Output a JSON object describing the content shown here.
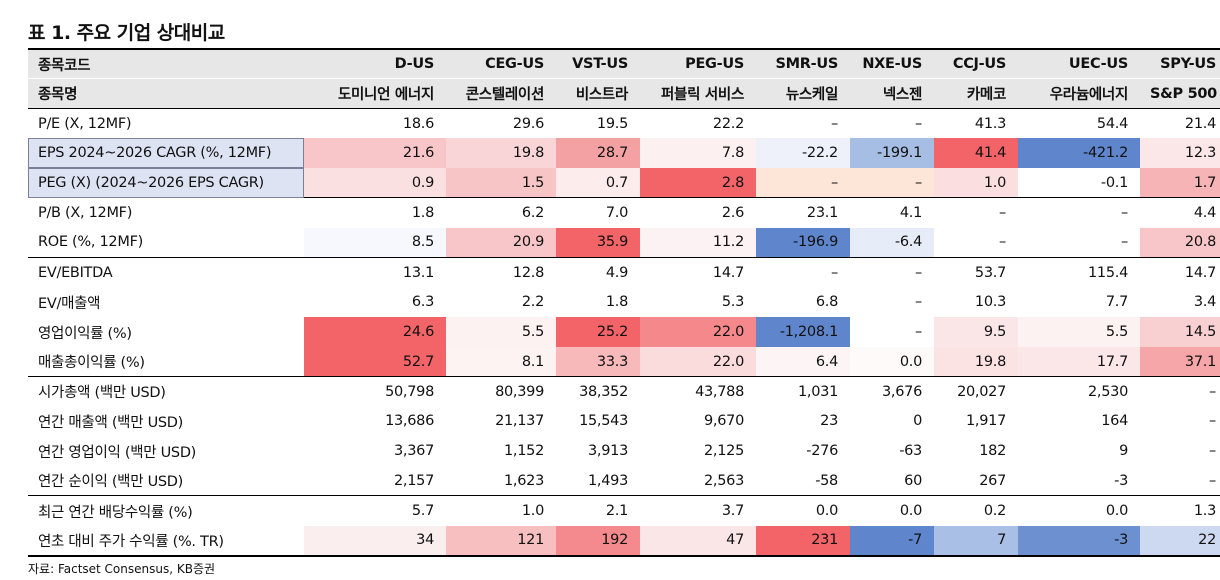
{
  "title": "표 1. 주요 기업 상대비교",
  "source": "자료: Factset Consensus, KB증권",
  "header": {
    "ticker_label": "종목코드",
    "name_label": "종목명",
    "tickers": [
      "D-US",
      "CEG-US",
      "VST-US",
      "PEG-US",
      "SMR-US",
      "NXE-US",
      "CCJ-US",
      "UEC-US",
      "SPY-US"
    ],
    "names": [
      "도미니언 에너지",
      "콘스텔레이션",
      "비스트라",
      "퍼블릭 서비스",
      "뉴스케일",
      "넥스젠",
      "카메코",
      "우라늄에너지",
      "S&P 500"
    ]
  },
  "rows": [
    {
      "label": "P/E (X, 12MF)",
      "group_start": true,
      "values": [
        "18.6",
        "29.6",
        "19.5",
        "22.2",
        "–",
        "–",
        "41.3",
        "54.4",
        "21.4"
      ],
      "colors": [
        "",
        "",
        "",
        "",
        "",
        "",
        "",
        "",
        ""
      ]
    },
    {
      "label": "EPS 2024~2026 CAGR (%, 12MF)",
      "label_highlight": true,
      "values": [
        "21.6",
        "19.8",
        "28.7",
        "7.8",
        "-22.2",
        "-199.1",
        "41.4",
        "-421.2",
        "12.3"
      ],
      "colors": [
        "#f8c6c8",
        "#f9d5d7",
        "#f4a1a4",
        "#fdf0f0",
        "#eef1fa",
        "#a6bde4",
        "#f26468",
        "#5f86cc",
        "#fce7e8"
      ]
    },
    {
      "label": "PEG (X) (2024~2026 EPS CAGR)",
      "label_highlight": true,
      "values": [
        "0.9",
        "1.5",
        "0.7",
        "2.8",
        "–",
        "–",
        "1.0",
        "-0.1",
        "1.7"
      ],
      "colors": [
        "#fbe0e1",
        "#f8c5c7",
        "#fdecec",
        "#f26468",
        "#fde5d8",
        "#fde5d8",
        "#fbdfe0",
        "#ffffff",
        "#f6b4b6"
      ]
    },
    {
      "label": "P/B (X, 12MF)",
      "group_start": true,
      "values": [
        "1.8",
        "6.2",
        "7.0",
        "2.6",
        "23.1",
        "4.1",
        "–",
        "–",
        "4.4"
      ],
      "colors": [
        "",
        "",
        "",
        "",
        "",
        "",
        "",
        "",
        ""
      ]
    },
    {
      "label": "ROE (%, 12MF)",
      "values": [
        "8.5",
        "20.9",
        "35.9",
        "11.2",
        "-196.9",
        "-6.4",
        "–",
        "–",
        "20.8"
      ],
      "colors": [
        "#f7f8fd",
        "#f8c6c8",
        "#f26468",
        "#fcf2f3",
        "#5f86cc",
        "#e6ecf8",
        "",
        "",
        "#f8c6c8"
      ]
    },
    {
      "label": "EV/EBITDA",
      "group_start": true,
      "values": [
        "13.1",
        "12.8",
        "4.9",
        "14.7",
        "–",
        "–",
        "53.7",
        "115.4",
        "14.7"
      ],
      "colors": [
        "",
        "",
        "",
        "",
        "",
        "",
        "",
        "",
        ""
      ]
    },
    {
      "label": "EV/매출액",
      "values": [
        "6.3",
        "2.2",
        "1.8",
        "5.3",
        "6.8",
        "–",
        "10.3",
        "7.7",
        "3.4"
      ],
      "colors": [
        "",
        "",
        "",
        "",
        "",
        "",
        "",
        "",
        ""
      ]
    },
    {
      "label": "영업이익률 (%)",
      "values": [
        "24.6",
        "5.5",
        "25.2",
        "22.0",
        "-1,208.1",
        "–",
        "9.5",
        "5.5",
        "14.5"
      ],
      "colors": [
        "#f26468",
        "#fdf2f2",
        "#f26468",
        "#f4888b",
        "#5f86cc",
        "",
        "#fbe6e7",
        "#fdf2f2",
        "#f9d0d2"
      ]
    },
    {
      "label": "매출총이익률 (%)",
      "values": [
        "52.7",
        "8.1",
        "33.3",
        "22.0",
        "6.4",
        "0.0",
        "19.8",
        "17.7",
        "37.1"
      ],
      "colors": [
        "#f26468",
        "#fdf3f3",
        "#f8b9bb",
        "#fbdcdd",
        "#fdf5f5",
        "#fefafa",
        "#fbe2e3",
        "#fce7e8",
        "#f6a6a8"
      ]
    },
    {
      "label": "시가총액 (백만 USD)",
      "group_start": true,
      "values": [
        "50,798",
        "80,399",
        "38,352",
        "43,788",
        "1,031",
        "3,676",
        "20,027",
        "2,530",
        "–"
      ],
      "colors": [
        "",
        "",
        "",
        "",
        "",
        "",
        "",
        "",
        ""
      ]
    },
    {
      "label": "연간 매출액 (백만 USD)",
      "values": [
        "13,686",
        "21,137",
        "15,543",
        "9,670",
        "23",
        "0",
        "1,917",
        "164",
        "–"
      ],
      "colors": [
        "",
        "",
        "",
        "",
        "",
        "",
        "",
        "",
        ""
      ]
    },
    {
      "label": "연간 영업이익 (백만 USD)",
      "values": [
        "3,367",
        "1,152",
        "3,913",
        "2,125",
        "-276",
        "-63",
        "182",
        "9",
        "–"
      ],
      "colors": [
        "",
        "",
        "",
        "",
        "",
        "",
        "",
        "",
        ""
      ]
    },
    {
      "label": "연간 순이익 (백만 USD)",
      "values": [
        "2,157",
        "1,623",
        "1,493",
        "2,563",
        "-58",
        "60",
        "267",
        "-3",
        "–"
      ],
      "colors": [
        "",
        "",
        "",
        "",
        "",
        "",
        "",
        "",
        ""
      ]
    },
    {
      "label": "최근 연간 배당수익률 (%)",
      "group_start": true,
      "values": [
        "5.7",
        "1.0",
        "2.1",
        "3.7",
        "0.0",
        "0.0",
        "0.2",
        "0.0",
        "1.3"
      ],
      "colors": [
        "",
        "",
        "",
        "",
        "",
        "",
        "",
        "",
        ""
      ]
    },
    {
      "label": "연초 대비 주가 수익률 (%. TR)",
      "last": true,
      "values": [
        "34",
        "121",
        "192",
        "47",
        "231",
        "-7",
        "7",
        "-3",
        "22"
      ],
      "colors": [
        "#fbeeee",
        "#f8bfc1",
        "#f48a8d",
        "#fbe6e7",
        "#f26468",
        "#5f86cc",
        "#a9bfe5",
        "#6d91d0",
        "#cdd9f0"
      ]
    }
  ]
}
